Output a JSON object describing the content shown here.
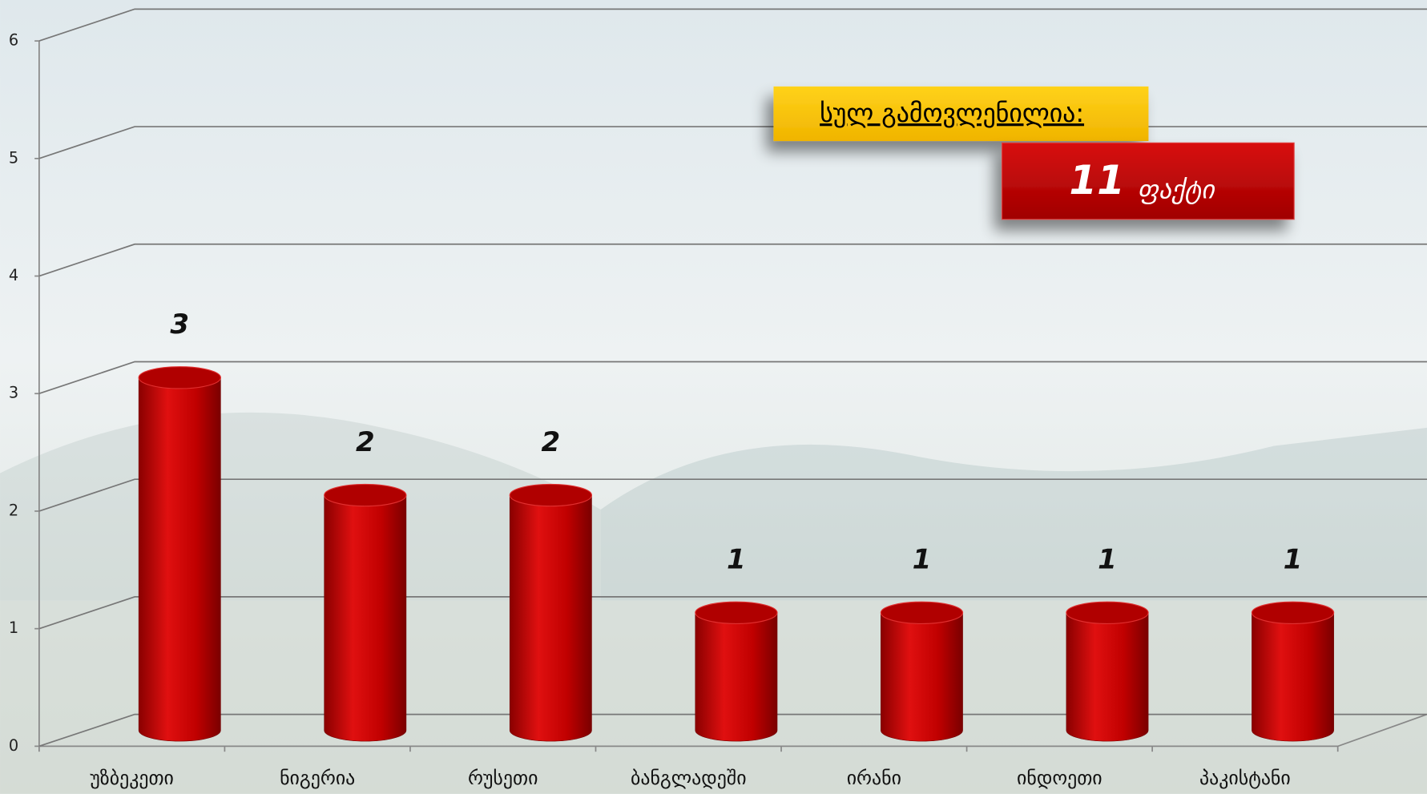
{
  "chart_data": {
    "type": "bar",
    "categories": [
      "უზბეკეთი",
      "ნიგერია",
      "რუსეთი",
      "ბანგლადეში",
      "ირანი",
      "ინდოეთი",
      "პაკისტანი"
    ],
    "values": [
      3,
      2,
      2,
      1,
      1,
      1,
      1
    ],
    "color": "#c00000",
    "ylim": [
      0,
      6
    ],
    "yticks": [
      0,
      1,
      2,
      3,
      4,
      5,
      6
    ],
    "grid": true,
    "annotation": {
      "label": "სულ გამოვლენილია:",
      "total": 11,
      "unit": "ფაქტი"
    }
  }
}
